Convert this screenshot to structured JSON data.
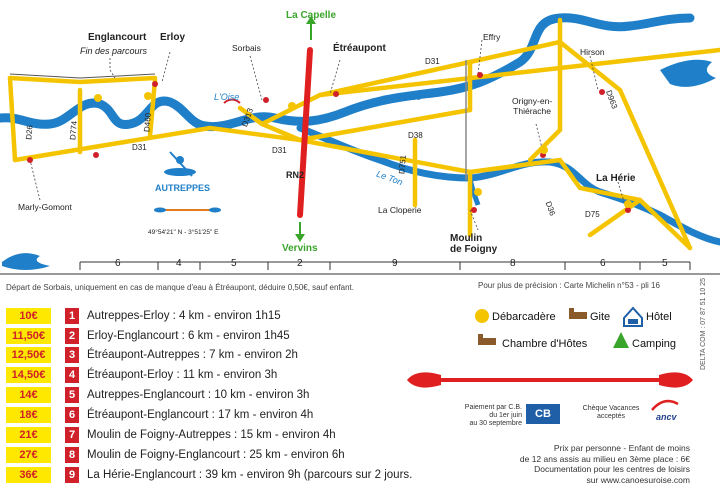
{
  "map": {
    "towns": {
      "la_capelle": "La Capelle",
      "englancourt": "Englancourt",
      "fin_parcours": "Fin des parcours",
      "erloy": "Erloy",
      "sorbais": "Sorbais",
      "etreaupont": "Étréaupont",
      "effry": "Effry",
      "hirson": "Hirson",
      "origny": "Origny-en-\nThiérache",
      "la_herie": "La Hérie",
      "marly": "Marly-Gomont",
      "autreppes": "AUTREPPES",
      "la_cloperie": "La Cloperie",
      "moulin": "Moulin\nde Foigny",
      "vervins": "Vervins"
    },
    "roads": {
      "d26": "D26",
      "d774": "D774",
      "d460": "D460",
      "d31_a": "D31",
      "d31_b": "D31",
      "d31_c": "D31",
      "d313": "D313",
      "rn2": "RN2",
      "d38": "D38",
      "d751": "D751",
      "d963": "D963",
      "d36": "D36",
      "d75": "D75"
    },
    "rivers": {
      "oise_1": "L'Oise",
      "oise_2": "L'Oise",
      "le_ton": "Le Ton"
    },
    "coords": "49°54'21\" N - 3°51'25\" E",
    "distances": [
      "6",
      "4",
      "5",
      "2",
      "9",
      "8",
      "6",
      "5"
    ]
  },
  "notes": {
    "sorbais_note": "Départ de Sorbais, uniquement en cas de manque d'eau à Étréaupont, déduire 0,50€, sauf enfant.",
    "michelin": "Pour plus de précision : Carte Michelin n°53 - pli 16",
    "credit": "DELTA COM : 07 87 51 10 25"
  },
  "routes": [
    {
      "price": "10€",
      "num": "1",
      "text": "Autreppes-Erloy : 4 km - environ 1h15"
    },
    {
      "price": "11,50€",
      "num": "2",
      "text": "Erloy-Englancourt : 6 km - environ 1h45"
    },
    {
      "price": "12,50€",
      "num": "3",
      "text": "Étréaupont-Autreppes : 7 km - environ 2h"
    },
    {
      "price": "14,50€",
      "num": "4",
      "text": "Étréaupont-Erloy : 11 km - environ 3h"
    },
    {
      "price": "14€",
      "num": "5",
      "text": "Autreppes-Englancourt : 10 km - environ 3h"
    },
    {
      "price": "18€",
      "num": "6",
      "text": "Étréaupont-Englancourt : 17 km - environ 4h"
    },
    {
      "price": "21€",
      "num": "7",
      "text": "Moulin de Foigny-Autreppes : 15 km - environ 4h"
    },
    {
      "price": "27€",
      "num": "8",
      "text": "Moulin de Foigny-Englancourt : 25 km - environ 6h"
    },
    {
      "price": "36€",
      "num": "9",
      "text": "La Hérie-Englancourt : 39 km - environ 9h (parcours sur 2 jours."
    }
  ],
  "legend": {
    "debarcadere": "Débarcadère",
    "gite": "Gite",
    "hotel": "Hôtel",
    "chambre": "Chambre d'Hôtes",
    "camping": "Camping"
  },
  "payment": {
    "cb_line1": "Paiement par C.B.",
    "cb_line2": "du 1er juin",
    "cb_line3": "au 30 septembre",
    "cb_logo": "CB",
    "cheque": "Chèque Vacances\nacceptés",
    "ancv": "ancv"
  },
  "footer": {
    "line1": "Prix par personne - Enfant de moins",
    "line2": "de 12 ans assis au milieu en 3ème place : 6€",
    "line3": "Documentation pour les centres de loisirs",
    "line4": "sur www.canoesuroise.com"
  },
  "colors": {
    "road": "#f5c400",
    "river": "#1f7fc8",
    "rn2": "#e02020",
    "accent_red": "#d0202a",
    "price_bg": "#ffe800",
    "legend_green": "#3aa52b"
  }
}
